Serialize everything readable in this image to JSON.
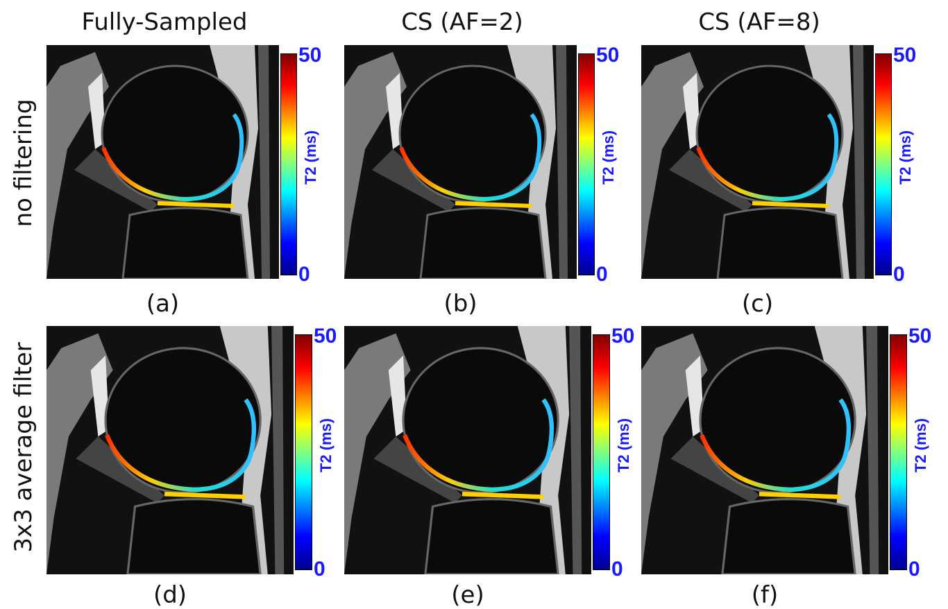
{
  "columns": [
    "Fully-Sampled",
    "CS (AF=2)",
    "CS (AF=8)"
  ],
  "rows": [
    "no filtering",
    "3x3 average filter"
  ],
  "panels": [
    {
      "label": "(a)",
      "colorbar": {
        "title": "T2 (ms)",
        "max": 50,
        "min": 0
      }
    },
    {
      "label": "(b)",
      "colorbar": {
        "title": "T2 (ms)",
        "max": 50,
        "min": 0
      }
    },
    {
      "label": "(c)",
      "colorbar": {
        "title": "T2 (ms)",
        "max": 50,
        "min": 0
      }
    },
    {
      "label": "(d)",
      "colorbar": {
        "title": "T2 (ms)",
        "max": 50,
        "min": 0
      }
    },
    {
      "label": "(e)",
      "colorbar": {
        "title": "T2 (ms)",
        "max": 50,
        "min": 0
      }
    },
    {
      "label": "(f)",
      "colorbar": {
        "title": "T2 (ms)",
        "max": 50,
        "min": 0
      }
    }
  ]
}
